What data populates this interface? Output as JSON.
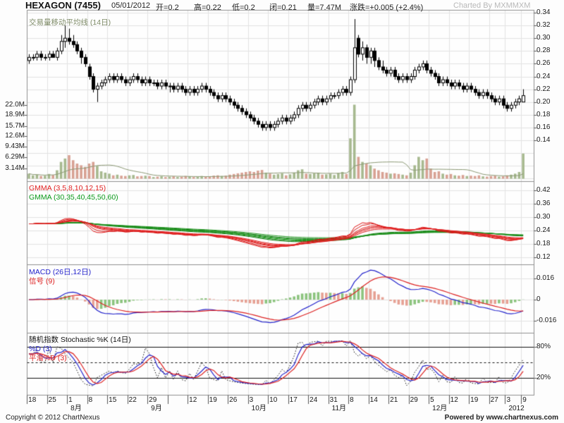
{
  "header": {
    "symbol": "HEXAGON (7455)",
    "date": "05/01/2012",
    "open_label": "开=0.2",
    "high_label": "高=0.22",
    "low_label": "低=0.2",
    "close_label": "闭=0.21",
    "volume_label": "量=7.47M",
    "change_label": "涨跌=+0.005 (+2.4%)",
    "charted_by": "Charted By MXMMXM"
  },
  "footer": {
    "copyright": "Copyright © 2012 ChartNexus",
    "powered_by": "Powered by www.chartnexus.com"
  },
  "panels": {
    "price": {
      "indicator_label": "交易量移动平均线 (14日)",
      "right_axis": [
        "0.34",
        "0.32",
        "0.30",
        "0.28",
        "0.26",
        "0.24",
        "0.22",
        "0.20",
        "0.18",
        "0.16",
        "0.14"
      ],
      "left_axis": [
        "22.0M",
        "18.9M",
        "15.7M",
        "12.6M",
        "9.43M",
        "6.29M",
        "3.14M"
      ]
    },
    "gmma": {
      "label_short": "GMMA (3,5,8,10,12,15)",
      "label_long": "GMMA (30,35,40,45,50,60)",
      "right_axis": [
        "0.42",
        "0.36",
        "0.30",
        "0.24",
        "0.18",
        "0.12"
      ]
    },
    "macd": {
      "label_macd": "MACD (26日,12日)",
      "label_signal": "信号 (9)",
      "right_axis": [
        "0.016",
        "0",
        "-0.016"
      ]
    },
    "stochastic": {
      "label_main": "随机指数 Stochastic %K (14日)",
      "label_d": "%D (3)",
      "label_slow_d": "平滑%D (3)",
      "right_axis": [
        "80%",
        "20%"
      ]
    }
  },
  "colors": {
    "background": "#fdfdfd",
    "panel_background": "#fefefe",
    "grid": "#e3e3e3",
    "panel_border": "#909090",
    "tick": "#555555",
    "candle": "#000000",
    "candle_up_fill": "#ffffff",
    "volume_up": "#a7b98f",
    "volume_down": "#d8a193",
    "volume_ma": "#8d9a76",
    "volume_ma_label": "#7d8a66",
    "gmma_short_label": "#e02020",
    "gmma_long_label": "#0a9a1a",
    "gmma_short": [
      "#e01010",
      "#d41414",
      "#ee2222",
      "#c80d0d",
      "#f13434",
      "#dc1c1c"
    ],
    "gmma_long": [
      "#0a7a0a",
      "#118811",
      "#1d951d",
      "#2aa32a",
      "#077207",
      "#239923"
    ],
    "macd_line": "#2424cc",
    "macd_signal": "#dd2222",
    "macd_hist_up": "#8cc47e",
    "macd_hist_down": "#e6a194",
    "stoch_k": "#111111",
    "stoch_d": "#2424cc",
    "stoch_slow_d": "#dd2222",
    "overbought_line": "#111111",
    "header_text": "#222222",
    "charted_by": "#b8b8b8"
  },
  "chart_data": {
    "type": "candlestick",
    "title": "HEXAGON (7455)",
    "price_axis_range": [
      0.14,
      0.34
    ],
    "volume_axis_range_m": [
      0,
      22.0
    ],
    "gmma_axis_range": [
      0.12,
      0.42
    ],
    "macd_axis_range": [
      -0.016,
      0.016
    ],
    "stochastic_axis_marks": [
      80,
      50,
      20
    ],
    "indicators": {
      "volume_ma_period": 14,
      "gmma_short_periods": [
        3,
        5,
        8,
        10,
        12,
        15
      ],
      "gmma_long_periods": [
        30,
        35,
        40,
        45,
        50,
        60
      ],
      "macd_periods": [
        26,
        12,
        9
      ],
      "stochastic_periods": [
        14,
        3,
        3
      ]
    },
    "x_axis": {
      "ticks": [
        {
          "bar": 0,
          "label": "18"
        },
        {
          "bar": 5,
          "label": "25"
        },
        {
          "bar": 10,
          "label": "1"
        },
        {
          "bar": 15,
          "label": "8"
        },
        {
          "bar": 20,
          "label": "15"
        },
        {
          "bar": 25,
          "label": "22"
        },
        {
          "bar": 30,
          "label": "29"
        },
        {
          "bar": 35,
          "label": ""
        },
        {
          "bar": 40,
          "label": "12"
        },
        {
          "bar": 45,
          "label": "19"
        },
        {
          "bar": 50,
          "label": "26"
        },
        {
          "bar": 55,
          "label": "3"
        },
        {
          "bar": 60,
          "label": "10"
        },
        {
          "bar": 65,
          "label": "17"
        },
        {
          "bar": 70,
          "label": "24"
        },
        {
          "bar": 75,
          "label": "31"
        },
        {
          "bar": 80,
          "label": "8"
        },
        {
          "bar": 85,
          "label": "14"
        },
        {
          "bar": 90,
          "label": "21"
        },
        {
          "bar": 95,
          "label": "29"
        },
        {
          "bar": 100,
          "label": "5"
        },
        {
          "bar": 105,
          "label": "12"
        },
        {
          "bar": 110,
          "label": "19"
        },
        {
          "bar": 115,
          "label": "27"
        },
        {
          "bar": 119,
          "label": "3"
        },
        {
          "bar": 123,
          "label": "9"
        }
      ],
      "months": [
        {
          "bar": 10,
          "label": "8月"
        },
        {
          "bar": 30,
          "label": "9月"
        },
        {
          "bar": 55,
          "label": "10月"
        },
        {
          "bar": 75,
          "label": "11月"
        },
        {
          "bar": 100,
          "label": "12月"
        },
        {
          "bar": 119,
          "label": "2012"
        }
      ]
    },
    "ohlc": [
      [
        0.265,
        0.275,
        0.26,
        0.27
      ],
      [
        0.27,
        0.275,
        0.265,
        0.27
      ],
      [
        0.27,
        0.28,
        0.265,
        0.275
      ],
      [
        0.275,
        0.28,
        0.265,
        0.27
      ],
      [
        0.27,
        0.275,
        0.265,
        0.27
      ],
      [
        0.27,
        0.28,
        0.265,
        0.275
      ],
      [
        0.275,
        0.28,
        0.27,
        0.27
      ],
      [
        0.27,
        0.285,
        0.265,
        0.28
      ],
      [
        0.28,
        0.305,
        0.275,
        0.295
      ],
      [
        0.295,
        0.32,
        0.285,
        0.3
      ],
      [
        0.3,
        0.315,
        0.29,
        0.295
      ],
      [
        0.295,
        0.305,
        0.285,
        0.29
      ],
      [
        0.29,
        0.295,
        0.275,
        0.28
      ],
      [
        0.28,
        0.285,
        0.26,
        0.27
      ],
      [
        0.27,
        0.275,
        0.255,
        0.26
      ],
      [
        0.255,
        0.26,
        0.235,
        0.24
      ],
      [
        0.24,
        0.245,
        0.215,
        0.22
      ],
      [
        0.22,
        0.23,
        0.2,
        0.225
      ],
      [
        0.225,
        0.235,
        0.22,
        0.23
      ],
      [
        0.23,
        0.24,
        0.225,
        0.235
      ],
      [
        0.235,
        0.245,
        0.23,
        0.24
      ],
      [
        0.24,
        0.245,
        0.23,
        0.235
      ],
      [
        0.235,
        0.245,
        0.23,
        0.24
      ],
      [
        0.24,
        0.245,
        0.23,
        0.235
      ],
      [
        0.235,
        0.24,
        0.225,
        0.23
      ],
      [
        0.23,
        0.24,
        0.225,
        0.235
      ],
      [
        0.235,
        0.245,
        0.23,
        0.24
      ],
      [
        0.24,
        0.245,
        0.23,
        0.235
      ],
      [
        0.235,
        0.24,
        0.225,
        0.23
      ],
      [
        0.23,
        0.24,
        0.225,
        0.235
      ],
      [
        0.235,
        0.24,
        0.225,
        0.23
      ],
      [
        0.23,
        0.235,
        0.225,
        0.23
      ],
      [
        0.23,
        0.235,
        0.22,
        0.225
      ],
      [
        0.225,
        0.235,
        0.22,
        0.23
      ],
      [
        0.23,
        0.235,
        0.22,
        0.225
      ],
      [
        0.225,
        0.23,
        0.215,
        0.225
      ],
      [
        0.225,
        0.23,
        0.215,
        0.22
      ],
      [
        0.22,
        0.23,
        0.215,
        0.225
      ],
      [
        0.225,
        0.23,
        0.215,
        0.22
      ],
      [
        0.22,
        0.225,
        0.21,
        0.215
      ],
      [
        0.215,
        0.225,
        0.21,
        0.22
      ],
      [
        0.22,
        0.225,
        0.21,
        0.215
      ],
      [
        0.215,
        0.225,
        0.21,
        0.22
      ],
      [
        0.22,
        0.23,
        0.215,
        0.225
      ],
      [
        0.225,
        0.23,
        0.215,
        0.22
      ],
      [
        0.22,
        0.225,
        0.21,
        0.215
      ],
      [
        0.215,
        0.22,
        0.205,
        0.21
      ],
      [
        0.21,
        0.215,
        0.2,
        0.205
      ],
      [
        0.205,
        0.215,
        0.2,
        0.21
      ],
      [
        0.21,
        0.215,
        0.2,
        0.205
      ],
      [
        0.205,
        0.21,
        0.195,
        0.2
      ],
      [
        0.2,
        0.205,
        0.19,
        0.195
      ],
      [
        0.195,
        0.2,
        0.185,
        0.19
      ],
      [
        0.19,
        0.195,
        0.18,
        0.185
      ],
      [
        0.185,
        0.19,
        0.175,
        0.18
      ],
      [
        0.18,
        0.185,
        0.17,
        0.175
      ],
      [
        0.175,
        0.18,
        0.165,
        0.17
      ],
      [
        0.17,
        0.175,
        0.16,
        0.165
      ],
      [
        0.165,
        0.17,
        0.155,
        0.16
      ],
      [
        0.16,
        0.17,
        0.155,
        0.165
      ],
      [
        0.165,
        0.17,
        0.155,
        0.16
      ],
      [
        0.16,
        0.17,
        0.155,
        0.165
      ],
      [
        0.165,
        0.175,
        0.16,
        0.17
      ],
      [
        0.17,
        0.18,
        0.165,
        0.175
      ],
      [
        0.175,
        0.18,
        0.165,
        0.17
      ],
      [
        0.17,
        0.18,
        0.165,
        0.175
      ],
      [
        0.175,
        0.185,
        0.17,
        0.18
      ],
      [
        0.18,
        0.195,
        0.175,
        0.19
      ],
      [
        0.19,
        0.2,
        0.185,
        0.195
      ],
      [
        0.195,
        0.2,
        0.185,
        0.19
      ],
      [
        0.19,
        0.2,
        0.185,
        0.195
      ],
      [
        0.195,
        0.205,
        0.19,
        0.2
      ],
      [
        0.2,
        0.21,
        0.195,
        0.205
      ],
      [
        0.205,
        0.21,
        0.195,
        0.2
      ],
      [
        0.2,
        0.21,
        0.195,
        0.205
      ],
      [
        0.205,
        0.215,
        0.2,
        0.21
      ],
      [
        0.21,
        0.215,
        0.205,
        0.21
      ],
      [
        0.21,
        0.22,
        0.205,
        0.215
      ],
      [
        0.215,
        0.225,
        0.21,
        0.22
      ],
      [
        0.22,
        0.225,
        0.21,
        0.215
      ],
      [
        0.215,
        0.24,
        0.21,
        0.235
      ],
      [
        0.235,
        0.33,
        0.23,
        0.285
      ],
      [
        0.3,
        0.305,
        0.27,
        0.275
      ],
      [
        0.275,
        0.295,
        0.265,
        0.285
      ],
      [
        0.285,
        0.29,
        0.26,
        0.27
      ],
      [
        0.27,
        0.285,
        0.26,
        0.28
      ],
      [
        0.28,
        0.285,
        0.255,
        0.265
      ],
      [
        0.265,
        0.27,
        0.25,
        0.255
      ],
      [
        0.255,
        0.265,
        0.245,
        0.25
      ],
      [
        0.25,
        0.255,
        0.24,
        0.245
      ],
      [
        0.245,
        0.255,
        0.24,
        0.25
      ],
      [
        0.25,
        0.255,
        0.235,
        0.24
      ],
      [
        0.24,
        0.245,
        0.23,
        0.235
      ],
      [
        0.235,
        0.245,
        0.23,
        0.24
      ],
      [
        0.24,
        0.245,
        0.23,
        0.235
      ],
      [
        0.235,
        0.245,
        0.23,
        0.24
      ],
      [
        0.24,
        0.255,
        0.235,
        0.25
      ],
      [
        0.25,
        0.26,
        0.245,
        0.255
      ],
      [
        0.255,
        0.265,
        0.25,
        0.26
      ],
      [
        0.26,
        0.265,
        0.245,
        0.25
      ],
      [
        0.25,
        0.255,
        0.24,
        0.245
      ],
      [
        0.245,
        0.25,
        0.235,
        0.24
      ],
      [
        0.24,
        0.245,
        0.225,
        0.23
      ],
      [
        0.23,
        0.24,
        0.225,
        0.235
      ],
      [
        0.235,
        0.24,
        0.225,
        0.23
      ],
      [
        0.23,
        0.235,
        0.22,
        0.225
      ],
      [
        0.225,
        0.235,
        0.22,
        0.23
      ],
      [
        0.23,
        0.235,
        0.22,
        0.225
      ],
      [
        0.225,
        0.23,
        0.215,
        0.22
      ],
      [
        0.22,
        0.23,
        0.215,
        0.225
      ],
      [
        0.225,
        0.23,
        0.215,
        0.22
      ],
      [
        0.22,
        0.225,
        0.21,
        0.215
      ],
      [
        0.215,
        0.22,
        0.205,
        0.21
      ],
      [
        0.21,
        0.22,
        0.205,
        0.215
      ],
      [
        0.215,
        0.22,
        0.205,
        0.21
      ],
      [
        0.21,
        0.215,
        0.2,
        0.205
      ],
      [
        0.205,
        0.21,
        0.195,
        0.2
      ],
      [
        0.2,
        0.21,
        0.195,
        0.205
      ],
      [
        0.205,
        0.21,
        0.19,
        0.195
      ],
      [
        0.195,
        0.2,
        0.185,
        0.19
      ],
      [
        0.19,
        0.2,
        0.185,
        0.195
      ],
      [
        0.195,
        0.205,
        0.19,
        0.2
      ],
      [
        0.2,
        0.21,
        0.195,
        0.205
      ],
      [
        0.2,
        0.22,
        0.2,
        0.21
      ]
    ],
    "volume_m": [
      1.5,
      1.0,
      1.2,
      0.8,
      0.9,
      1.4,
      1.1,
      2.5,
      5.0,
      6.0,
      7.0,
      5.5,
      4.5,
      4.0,
      3.5,
      4.5,
      5.0,
      3.8,
      2.2,
      1.8,
      1.5,
      1.0,
      1.2,
      0.9,
      0.8,
      1.0,
      1.1,
      0.7,
      0.8,
      0.9,
      0.8,
      0.5,
      0.6,
      0.7,
      0.5,
      0.6,
      0.7,
      0.5,
      0.6,
      0.8,
      0.7,
      0.5,
      0.6,
      0.8,
      0.6,
      0.7,
      0.9,
      1.0,
      0.8,
      0.9,
      1.2,
      1.4,
      1.6,
      1.8,
      2.0,
      2.2,
      2.0,
      2.4,
      2.6,
      1.8,
      1.5,
      1.2,
      1.4,
      1.6,
      1.0,
      1.3,
      1.8,
      2.5,
      2.8,
      1.5,
      1.4,
      1.6,
      1.8,
      1.2,
      1.3,
      1.5,
      1.1,
      1.7,
      2.0,
      1.4,
      12.0,
      22.0,
      6.5,
      5.0,
      4.5,
      4.0,
      3.0,
      2.5,
      2.0,
      1.8,
      1.5,
      1.6,
      1.4,
      1.2,
      1.0,
      1.8,
      4.0,
      6.5,
      5.5,
      6.0,
      3.0,
      2.0,
      2.2,
      1.5,
      1.2,
      1.4,
      1.0,
      0.9,
      1.1,
      0.8,
      0.9,
      0.8,
      1.0,
      0.7,
      0.6,
      0.8,
      0.9,
      0.6,
      0.7,
      1.0,
      1.2,
      1.5,
      2.0,
      7.47
    ]
  }
}
